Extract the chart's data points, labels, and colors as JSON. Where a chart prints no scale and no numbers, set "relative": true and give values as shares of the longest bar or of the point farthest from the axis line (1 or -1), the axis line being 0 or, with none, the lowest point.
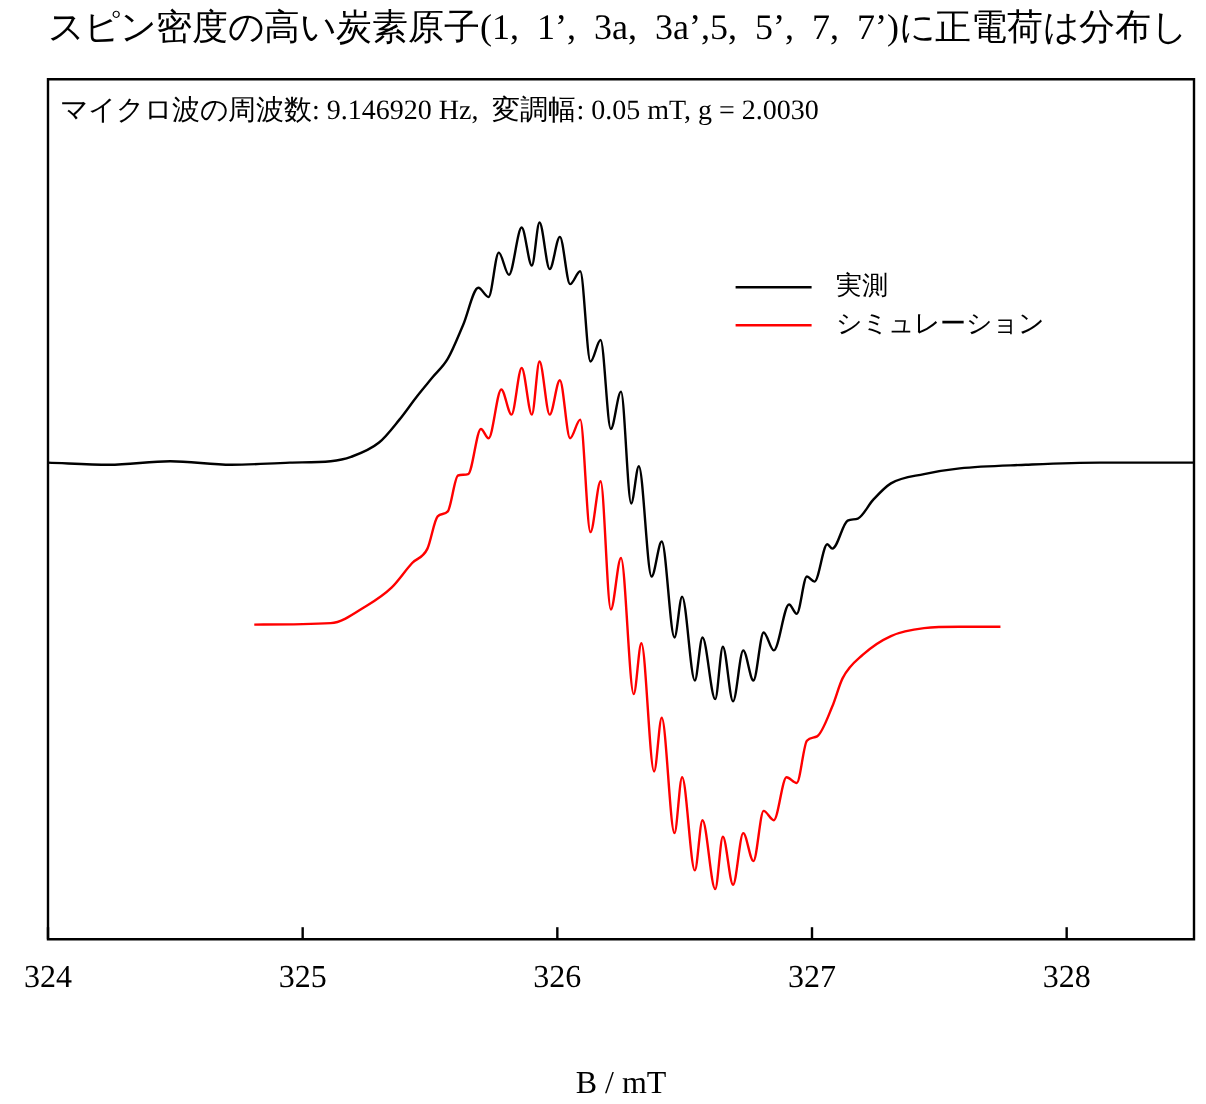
{
  "chart_data": {
    "type": "line",
    "title": "スピン密度の高い炭素原子(1,  1’,  3a,  3a’,5,  5’,  7,  7’)に正電荷は分布し",
    "xlabel": "B / mT",
    "annotations": [
      "マイクロ波の周波数: 9.146920 Hz,  変調幅: 0.05 mT, g = 2.0030"
    ],
    "relative": true,
    "xlim": [
      324,
      328.5
    ],
    "xticks": [
      324,
      325,
      326,
      327,
      328
    ],
    "grid": false,
    "legend": "top right",
    "marker": "none",
    "line_style": "solid",
    "series": [
      {
        "name": "実測",
        "color": "#000000",
        "x": [
          324.0,
          324.24,
          324.48,
          324.72,
          324.95,
          325.11,
          325.19,
          325.3,
          325.38,
          325.45,
          325.51,
          325.57,
          325.63,
          325.69,
          325.73,
          325.77,
          325.81,
          325.86,
          325.9,
          325.93,
          325.97,
          326.01,
          326.05,
          326.09,
          326.13,
          326.17,
          326.21,
          326.25,
          326.29,
          326.32,
          326.37,
          326.41,
          326.46,
          326.49,
          326.54,
          326.57,
          326.62,
          326.65,
          326.69,
          326.73,
          326.77,
          326.81,
          326.85,
          326.91,
          326.94,
          326.98,
          327.01,
          327.06,
          327.08,
          327.14,
          327.18,
          327.24,
          327.31,
          327.44,
          327.58,
          327.84,
          328.13,
          328.5
        ],
        "values": [
          0.665,
          0.662,
          0.667,
          0.662,
          0.665,
          0.667,
          0.673,
          0.693,
          0.725,
          0.758,
          0.784,
          0.81,
          0.857,
          0.909,
          0.896,
          0.958,
          0.927,
          0.993,
          0.94,
          1.0,
          0.935,
          0.98,
          0.914,
          0.932,
          0.806,
          0.836,
          0.712,
          0.764,
          0.608,
          0.66,
          0.506,
          0.555,
          0.421,
          0.478,
          0.361,
          0.421,
          0.335,
          0.408,
          0.332,
          0.403,
          0.361,
          0.428,
          0.403,
          0.467,
          0.454,
          0.506,
          0.499,
          0.551,
          0.545,
          0.584,
          0.587,
          0.613,
          0.636,
          0.649,
          0.657,
          0.662,
          0.665,
          0.665
        ]
      },
      {
        "name": "シミュレーション",
        "color": "#ff0000",
        "x": [
          324.81,
          325.11,
          325.25,
          325.35,
          325.43,
          325.49,
          325.53,
          325.57,
          325.61,
          325.65,
          325.7,
          325.73,
          325.78,
          325.82,
          325.86,
          325.9,
          325.93,
          325.97,
          326.01,
          326.05,
          326.09,
          326.13,
          326.17,
          326.21,
          326.25,
          326.3,
          326.33,
          326.38,
          326.41,
          326.46,
          326.49,
          326.54,
          326.57,
          326.62,
          326.65,
          326.69,
          326.73,
          326.77,
          326.81,
          326.85,
          326.9,
          326.94,
          326.98,
          327.02,
          327.08,
          327.12,
          327.2,
          327.31,
          327.44,
          327.58,
          327.74
        ],
        "values": [
          0.439,
          0.441,
          0.465,
          0.491,
          0.525,
          0.545,
          0.59,
          0.597,
          0.647,
          0.649,
          0.712,
          0.699,
          0.767,
          0.732,
          0.797,
          0.732,
          0.806,
          0.732,
          0.78,
          0.699,
          0.725,
          0.568,
          0.639,
          0.46,
          0.532,
          0.342,
          0.413,
          0.234,
          0.309,
          0.148,
          0.226,
          0.096,
          0.166,
          0.07,
          0.143,
          0.076,
          0.148,
          0.109,
          0.179,
          0.166,
          0.226,
          0.218,
          0.277,
          0.283,
          0.325,
          0.364,
          0.397,
          0.423,
          0.434,
          0.436,
          0.436
        ]
      }
    ]
  }
}
